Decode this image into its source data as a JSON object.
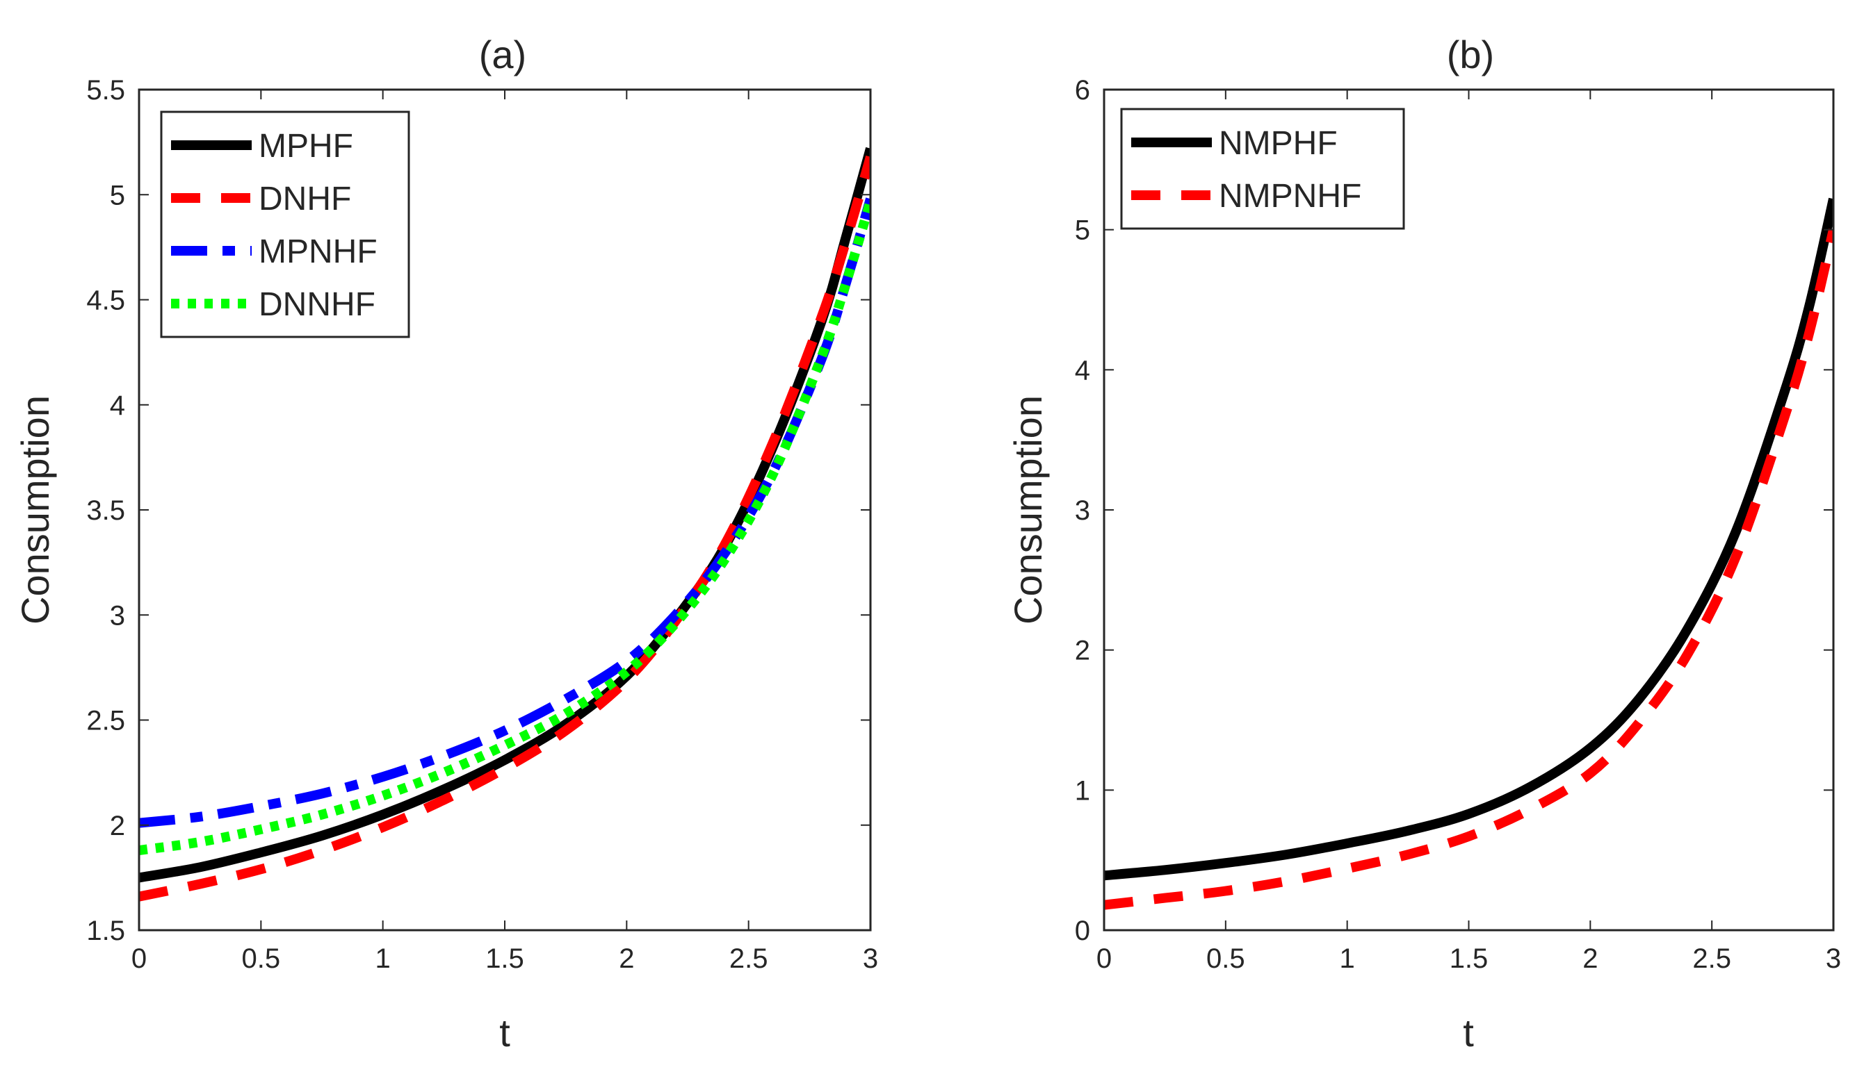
{
  "chart_data": [
    {
      "type": "line",
      "title": "(a)",
      "xlabel": "t",
      "ylabel": "Consumption",
      "xlim": [
        0,
        3
      ],
      "ylim": [
        1.5,
        5.5
      ],
      "xticks": [
        "0",
        "0.5",
        "1",
        "1.5",
        "2",
        "2.5",
        "3"
      ],
      "yticks": [
        "1.5",
        "2",
        "2.5",
        "3",
        "3.5",
        "4",
        "4.5",
        "5",
        "5.5"
      ],
      "grid": false,
      "legend_position": "top-left",
      "series": [
        {
          "name": "MPHF",
          "color": "#000000",
          "style": "solid",
          "x": [
            0,
            0.25,
            0.5,
            0.75,
            1.0,
            1.25,
            1.5,
            1.75,
            2.0,
            2.2,
            2.4,
            2.6,
            2.8,
            2.9,
            3.0
          ],
          "y": [
            1.75,
            1.8,
            1.87,
            1.95,
            2.05,
            2.17,
            2.31,
            2.48,
            2.71,
            2.98,
            3.32,
            3.8,
            4.4,
            4.8,
            5.22
          ]
        },
        {
          "name": "DNHF",
          "color": "#ff0000",
          "style": "dashed",
          "x": [
            0,
            0.25,
            0.5,
            0.75,
            1.0,
            1.25,
            1.5,
            1.75,
            2.0,
            2.2,
            2.4,
            2.6,
            2.8,
            2.9,
            3.0
          ],
          "y": [
            1.66,
            1.72,
            1.79,
            1.88,
            1.99,
            2.12,
            2.27,
            2.45,
            2.69,
            2.97,
            3.33,
            3.82,
            4.42,
            4.78,
            5.18
          ]
        },
        {
          "name": "MPNHF",
          "color": "#0000ff",
          "style": "longdash",
          "x": [
            0,
            0.25,
            0.5,
            0.75,
            1.0,
            1.25,
            1.5,
            1.75,
            2.0,
            2.2,
            2.4,
            2.6,
            2.8,
            2.9,
            3.0
          ],
          "y": [
            2.01,
            2.04,
            2.09,
            2.15,
            2.23,
            2.33,
            2.45,
            2.6,
            2.78,
            3.0,
            3.29,
            3.68,
            4.22,
            4.58,
            4.98
          ]
        },
        {
          "name": "DNNHF",
          "color": "#00ff00",
          "style": "dotted",
          "x": [
            0,
            0.25,
            0.5,
            0.75,
            1.0,
            1.25,
            1.5,
            1.75,
            2.0,
            2.2,
            2.4,
            2.6,
            2.8,
            2.9,
            3.0
          ],
          "y": [
            1.88,
            1.92,
            1.98,
            2.05,
            2.14,
            2.25,
            2.38,
            2.53,
            2.73,
            2.96,
            3.26,
            3.67,
            4.23,
            4.58,
            4.97
          ]
        }
      ]
    },
    {
      "type": "line",
      "title": "(b)",
      "xlabel": "t",
      "ylabel": "Consumption",
      "xlim": [
        0,
        3
      ],
      "ylim": [
        0,
        6
      ],
      "xticks": [
        "0",
        "0.5",
        "1",
        "1.5",
        "2",
        "2.5",
        "3"
      ],
      "yticks": [
        "0",
        "1",
        "2",
        "3",
        "4",
        "5",
        "6"
      ],
      "grid": false,
      "legend_position": "top-left",
      "series": [
        {
          "name": "NMPHF",
          "color": "#000000",
          "style": "solid",
          "x": [
            0,
            0.25,
            0.5,
            0.75,
            1.0,
            1.25,
            1.5,
            1.75,
            2.0,
            2.2,
            2.4,
            2.6,
            2.8,
            2.9,
            3.0
          ],
          "y": [
            0.39,
            0.43,
            0.48,
            0.54,
            0.62,
            0.71,
            0.83,
            1.02,
            1.3,
            1.65,
            2.15,
            2.85,
            3.85,
            4.45,
            5.22
          ]
        },
        {
          "name": "NMPNHF",
          "color": "#ff0000",
          "style": "dashed",
          "x": [
            0,
            0.25,
            0.5,
            0.75,
            1.0,
            1.25,
            1.5,
            1.75,
            2.0,
            2.2,
            2.4,
            2.6,
            2.8,
            2.9,
            3.0
          ],
          "y": [
            0.18,
            0.23,
            0.28,
            0.35,
            0.44,
            0.54,
            0.67,
            0.86,
            1.12,
            1.48,
            1.97,
            2.67,
            3.67,
            4.26,
            5.0
          ]
        }
      ]
    }
  ]
}
